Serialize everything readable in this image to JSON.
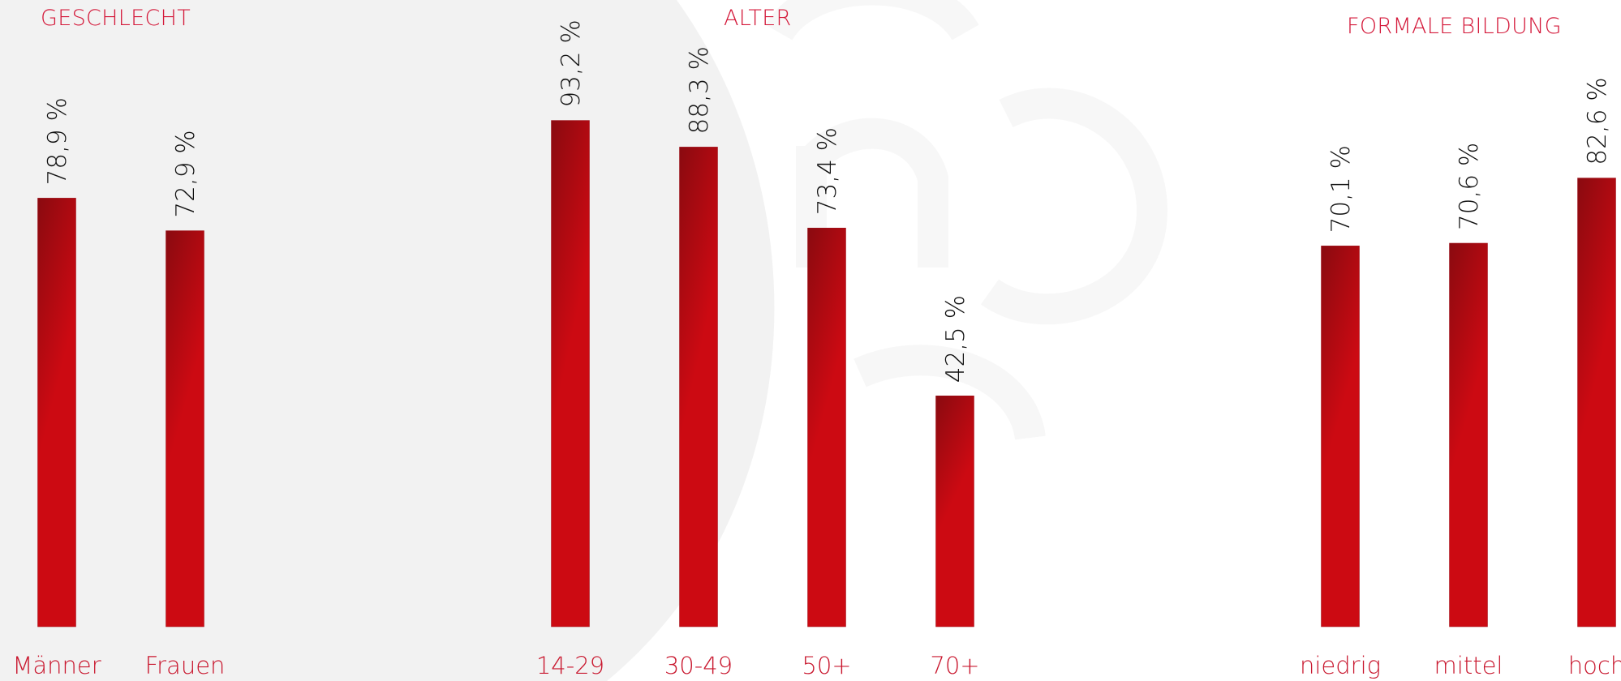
{
  "colors": {
    "bar_top": "#8a0a10",
    "bar_bottom": "#cc0a12",
    "title": "#d4193a",
    "category": "#c9182f",
    "value_text": "#111111",
    "background_circle": "#f2f2f2",
    "watermark": "#f7f7f7"
  },
  "chart_data": [
    {
      "type": "bar",
      "title": "GESCHLECHT",
      "categories": [
        "Männer",
        "Frauen"
      ],
      "values": [
        78.9,
        72.9
      ],
      "value_labels": [
        "78,9 %",
        "72,9 %"
      ],
      "ylim": [
        0,
        100
      ],
      "grid": false
    },
    {
      "type": "bar",
      "title": "ALTER",
      "categories": [
        "14-29",
        "30-49",
        "50+",
        "70+"
      ],
      "values": [
        93.2,
        88.3,
        73.4,
        42.5
      ],
      "value_labels": [
        "93,2 %",
        "88,3 %",
        "73,4 %",
        "42,5 %"
      ],
      "ylim": [
        0,
        100
      ],
      "grid": false
    },
    {
      "type": "bar",
      "title": "FORMALE BILDUNG",
      "categories": [
        "niedrig",
        "mittel",
        "hoch"
      ],
      "values": [
        70.1,
        70.6,
        82.6
      ],
      "value_labels": [
        "70,1 %",
        "70,6 %",
        "82,6 %"
      ],
      "ylim": [
        0,
        100
      ],
      "grid": false
    }
  ]
}
